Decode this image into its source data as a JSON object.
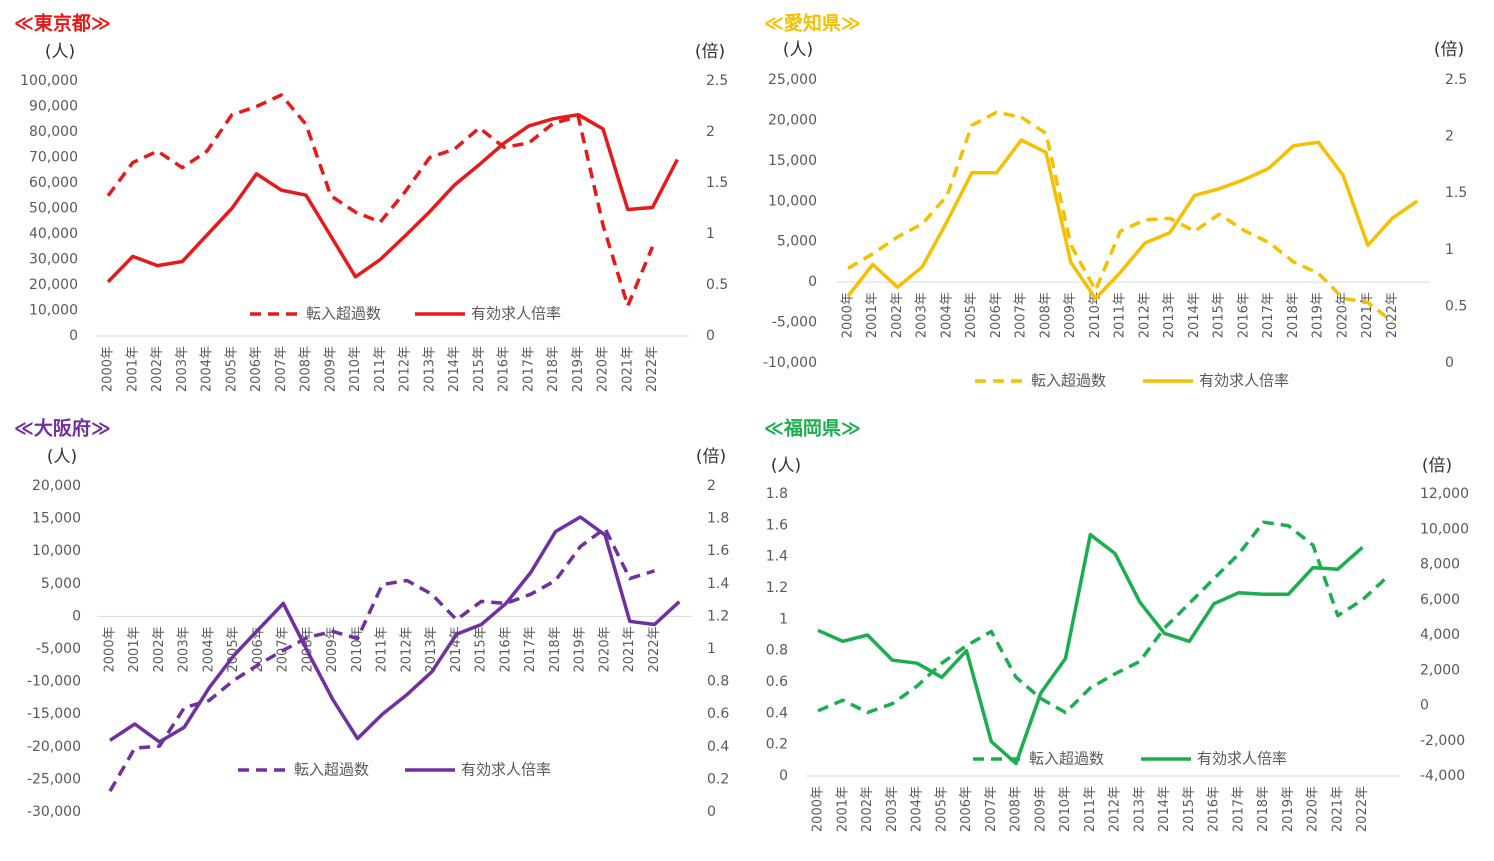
{
  "chart_data": [
    {
      "type": "line",
      "title": "≪東京都≫",
      "y_label": "(人)",
      "y2_label": "(倍)",
      "legend": "bottom",
      "categories": [
        "2000年",
        "2001年",
        "2002年",
        "2003年",
        "2004年",
        "2005年",
        "2006年",
        "2007年",
        "2008年",
        "2009年",
        "2010年",
        "2011年",
        "2012年",
        "2013年",
        "2014年",
        "2015年",
        "2016年",
        "2017年",
        "2018年",
        "2019年",
        "2020年",
        "2021年",
        "2022年",
        null
      ],
      "ylim": [
        0,
        100000
      ],
      "yticks": [
        0,
        {
          "value": 10000,
          "label": "10,000"
        },
        {
          "value": 20000,
          "label": "20,000"
        },
        {
          "value": 30000,
          "label": "30,000"
        },
        {
          "value": 40000,
          "label": "40,000"
        },
        {
          "value": 50000,
          "label": "50,000"
        },
        {
          "value": 60000,
          "label": "60,000"
        },
        {
          "value": 70000,
          "label": "70,000"
        },
        {
          "value": 80000,
          "label": "80,000"
        },
        {
          "value": 90000,
          "label": "90,000"
        },
        {
          "value": 100000,
          "label": "100,000"
        }
      ],
      "y2lim": [
        0,
        2.5
      ],
      "y2ticks": [
        0,
        0.5,
        1,
        1.5,
        2,
        2.5
      ],
      "series": [
        {
          "name": "転入超過数",
          "color": "#e8191a",
          "line_style": "dashed",
          "values": [
            55000,
            68000,
            72500,
            66000,
            72500,
            86700,
            90000,
            94500,
            83000,
            55000,
            48600,
            44700,
            56500,
            70000,
            73300,
            81600,
            74000,
            75700,
            83500,
            86000,
            43500,
            11800,
            35000,
            null
          ]
        },
        {
          "name": "有効求人倍率",
          "color": "#e8191a",
          "line_style": "solid",
          "axis": "y2",
          "values": [
            0.53,
            0.78,
            0.69,
            0.73,
            0.99,
            1.25,
            1.59,
            1.43,
            1.38,
            0.98,
            0.58,
            0.75,
            0.98,
            1.22,
            1.48,
            1.68,
            1.89,
            2.06,
            2.13,
            2.17,
            2.03,
            1.24,
            1.26,
            1.73
          ]
        }
      ]
    },
    {
      "type": "line",
      "title": "≪愛知県≫",
      "y_label": "(人)",
      "y2_label": "(倍)",
      "legend": "bottom",
      "categories": [
        "2000年",
        "2001年",
        "2002年",
        "2003年",
        "2004年",
        "2005年",
        "2006年",
        "2007年",
        "2008年",
        "2009年",
        "2010年",
        "2011年",
        "2012年",
        "2013年",
        "2014年",
        "2015年",
        "2016年",
        "2017年",
        "2018年",
        "2019年",
        "2020年",
        "2021年",
        "2022年",
        null
      ],
      "ylim": [
        -10000,
        25000
      ],
      "yticks": [
        {
          "value": -10000,
          "label": "-10,000"
        },
        {
          "value": -5000,
          "label": "-5,000"
        },
        0,
        {
          "value": 5000,
          "label": "5,000"
        },
        {
          "value": 10000,
          "label": "10,000"
        },
        {
          "value": 15000,
          "label": "15,000"
        },
        {
          "value": 20000,
          "label": "20,000"
        },
        {
          "value": 25000,
          "label": "25,000"
        }
      ],
      "y2lim": [
        0,
        2.5
      ],
      "y2ticks": [
        0,
        0.5,
        1,
        1.5,
        2,
        2.5
      ],
      "series": [
        {
          "name": "転入超過数",
          "color": "#f5c000",
          "line_style": "dashed",
          "values": [
            1700,
            3500,
            5600,
            7200,
            10700,
            19400,
            21000,
            20400,
            18400,
            4600,
            -1000,
            6300,
            7700,
            7900,
            6300,
            8400,
            6400,
            4900,
            2500,
            1100,
            -2000,
            -2500,
            -4900,
            null
          ]
        },
        {
          "name": "有効求人倍率",
          "color": "#f5c000",
          "line_style": "solid",
          "axis": "y2",
          "values": [
            0.59,
            0.87,
            0.67,
            0.85,
            1.25,
            1.68,
            1.68,
            1.97,
            1.86,
            0.89,
            0.57,
            0.8,
            1.06,
            1.15,
            1.48,
            1.54,
            1.62,
            1.72,
            1.92,
            1.95,
            1.66,
            1.04,
            1.28,
            1.43
          ]
        }
      ]
    },
    {
      "type": "line",
      "title": "≪大阪府≫",
      "y_label": "(人)",
      "y2_label": "(倍)",
      "legend": "bottom",
      "categories": [
        "2000年",
        "2001年",
        "2002年",
        "2003年",
        "2004年",
        "2005年",
        "2006年",
        "2007年",
        "2008年",
        "2009年",
        "2010年",
        "2011年",
        "2012年",
        "2013年",
        "2014年",
        "2015年",
        "2016年",
        "2017年",
        "2018年",
        "2019年",
        "2020年",
        "2021年",
        "2022年",
        null
      ],
      "ylim": [
        -30000,
        20000
      ],
      "yticks": [
        {
          "value": -30000,
          "label": "-30,000"
        },
        {
          "value": -25000,
          "label": "-25,000"
        },
        {
          "value": -20000,
          "label": "-20,000"
        },
        {
          "value": -15000,
          "label": "-15,000"
        },
        {
          "value": -10000,
          "label": "-10,000"
        },
        {
          "value": -5000,
          "label": "-5,000"
        },
        0,
        {
          "value": 5000,
          "label": "5,000"
        },
        {
          "value": 10000,
          "label": "10,000"
        },
        {
          "value": 15000,
          "label": "15,000"
        },
        {
          "value": 20000,
          "label": "20,000"
        }
      ],
      "y2lim": [
        0,
        2
      ],
      "y2ticks": [
        0,
        0.2,
        0.4,
        0.6,
        0.8,
        1,
        1.2,
        1.4,
        1.6,
        1.8,
        2
      ],
      "series": [
        {
          "name": "転入超過数",
          "color": "#7030a0",
          "line_style": "dashed",
          "values": [
            -26800,
            -20200,
            -19900,
            -14000,
            -12900,
            -9800,
            -7400,
            -5200,
            -3200,
            -2300,
            -3400,
            4900,
            5500,
            3400,
            -500,
            2300,
            2000,
            3400,
            5500,
            10700,
            13500,
            5800,
            7000,
            null
          ]
        },
        {
          "name": "有効求人倍率",
          "color": "#7030a0",
          "line_style": "solid",
          "axis": "y2",
          "values": [
            0.44,
            0.54,
            0.43,
            0.52,
            0.76,
            0.96,
            1.12,
            1.28,
            0.98,
            0.69,
            0.45,
            0.6,
            0.72,
            0.86,
            1.09,
            1.15,
            1.28,
            1.47,
            1.72,
            1.81,
            1.7,
            1.17,
            1.15,
            1.29
          ]
        }
      ]
    },
    {
      "type": "line",
      "title": "≪福岡県≫",
      "y_label": "(人)",
      "y2_label": "(倍)",
      "legend": "bottom",
      "categories": [
        "2000年",
        "2001年",
        "2002年",
        "2003年",
        "2004年",
        "2005年",
        "2006年",
        "2007年",
        "2008年",
        "2009年",
        "2010年",
        "2011年",
        "2012年",
        "2013年",
        "2014年",
        "2015年",
        "2016年",
        "2017年",
        "2018年",
        "2019年",
        "2020年",
        "2021年",
        "2022年",
        null
      ],
      "ylim": [
        0,
        1.8
      ],
      "yticks": [
        0,
        0.2,
        0.4,
        0.6,
        0.8,
        1,
        1.2,
        1.4,
        1.6,
        1.8
      ],
      "y2lim": [
        -4000,
        12000
      ],
      "y2ticks": [
        {
          "value": -4000,
          "label": "-4,000"
        },
        {
          "value": -2000,
          "label": "-2,000"
        },
        0,
        {
          "value": 2000,
          "label": "2,000"
        },
        {
          "value": 4000,
          "label": "4,000"
        },
        {
          "value": 6000,
          "label": "6,000"
        },
        {
          "value": 8000,
          "label": "8,000"
        },
        {
          "value": 10000,
          "label": "10,000"
        },
        {
          "value": 12000,
          "label": "12,000"
        }
      ],
      "series": [
        {
          "name": "転入超過数",
          "color": "#1aae4e",
          "line_style": "dashed",
          "axis": "y2",
          "values": [
            -300,
            300,
            -400,
            100,
            1100,
            2400,
            3400,
            4200,
            1600,
            400,
            -400,
            1000,
            1800,
            2500,
            4400,
            5800,
            7200,
            8600,
            10400,
            10200,
            9100,
            5100,
            6000,
            7300
          ]
        },
        {
          "name": "有効求人倍率",
          "color": "#1aae4e",
          "line_style": "solid",
          "values": [
            0.93,
            0.86,
            0.9,
            0.74,
            0.72,
            0.63,
            0.8,
            0.22,
            0.08,
            0.53,
            0.75,
            1.54,
            1.42,
            1.11,
            0.91,
            0.86,
            1.1,
            1.17,
            1.16,
            1.16,
            1.33,
            1.32,
            1.46,
            null
          ]
        }
      ]
    }
  ]
}
